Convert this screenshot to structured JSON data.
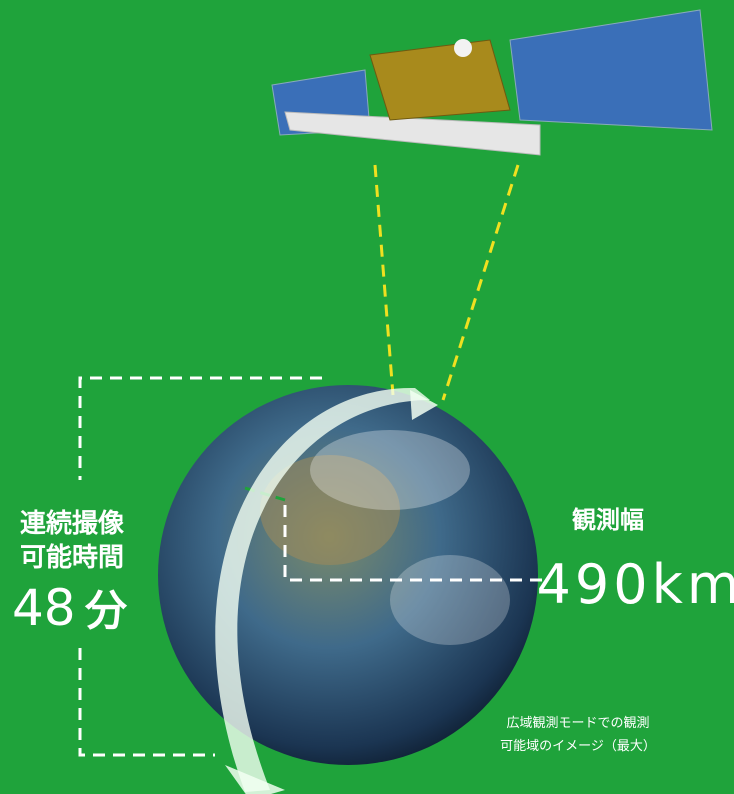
{
  "duration": {
    "label_lines": [
      "連続撮像",
      "可能時間"
    ],
    "value": "48",
    "unit": "分"
  },
  "swath": {
    "label": "観測幅",
    "value": "490km"
  },
  "caption": [
    "広域観測モードでの観測",
    "可能域のイメージ（最大）"
  ]
}
